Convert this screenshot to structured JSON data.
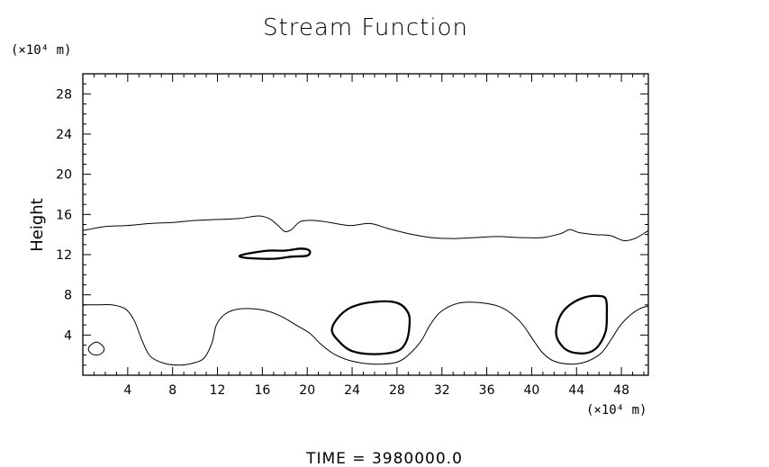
{
  "chart_data": {
    "type": "line",
    "title": "Stream Function",
    "xlabel": "",
    "ylabel": "Height",
    "x_unit": "(×10⁴ m)",
    "y_unit": "(×10⁴ m)",
    "xlim": [
      0,
      50.4
    ],
    "ylim": [
      0,
      30
    ],
    "x_ticks": [
      4,
      8,
      12,
      16,
      20,
      24,
      28,
      32,
      36,
      40,
      44,
      48
    ],
    "y_ticks": [
      4,
      8,
      12,
      16,
      20,
      24,
      28
    ],
    "footer": "TIME  =  3980000.0",
    "series": [
      {
        "id": "upper-contour",
        "kind": "thin",
        "closed": false,
        "points": [
          [
            0,
            14.4
          ],
          [
            2,
            14.8
          ],
          [
            4,
            14.9
          ],
          [
            6,
            15.1
          ],
          [
            8,
            15.2
          ],
          [
            10,
            15.4
          ],
          [
            12,
            15.5
          ],
          [
            14,
            15.6
          ],
          [
            15.6,
            15.85
          ],
          [
            16.6,
            15.6
          ],
          [
            17.4,
            14.9
          ],
          [
            18,
            14.3
          ],
          [
            18.6,
            14.5
          ],
          [
            19.4,
            15.3
          ],
          [
            20.6,
            15.4
          ],
          [
            22,
            15.2
          ],
          [
            23.8,
            14.9
          ],
          [
            25.6,
            15.1
          ],
          [
            27.2,
            14.6
          ],
          [
            29,
            14.1
          ],
          [
            31,
            13.7
          ],
          [
            33,
            13.6
          ],
          [
            35,
            13.7
          ],
          [
            37,
            13.8
          ],
          [
            39,
            13.7
          ],
          [
            41,
            13.7
          ],
          [
            42.6,
            14.1
          ],
          [
            43.4,
            14.5
          ],
          [
            44.2,
            14.2
          ],
          [
            45.6,
            14.0
          ],
          [
            47,
            13.9
          ],
          [
            48.2,
            13.4
          ],
          [
            49.2,
            13.6
          ],
          [
            50.4,
            14.4
          ]
        ]
      },
      {
        "id": "lower-contour",
        "kind": "thin",
        "closed": false,
        "points": [
          [
            0,
            7.0
          ],
          [
            1.4,
            7.0
          ],
          [
            2.6,
            7.0
          ],
          [
            3.8,
            6.6
          ],
          [
            4.6,
            5.4
          ],
          [
            5.3,
            3.4
          ],
          [
            6.0,
            1.9
          ],
          [
            7.2,
            1.2
          ],
          [
            8.6,
            1.0
          ],
          [
            9.8,
            1.2
          ],
          [
            10.8,
            1.7
          ],
          [
            11.5,
            3.2
          ],
          [
            11.9,
            5.0
          ],
          [
            12.7,
            6.1
          ],
          [
            14.0,
            6.6
          ],
          [
            16,
            6.5
          ],
          [
            17.6,
            5.9
          ],
          [
            19,
            5.0
          ],
          [
            20.2,
            4.2
          ],
          [
            21.2,
            3.1
          ],
          [
            22.4,
            2.1
          ],
          [
            24,
            1.4
          ],
          [
            26,
            1.1
          ],
          [
            28,
            1.3
          ],
          [
            29.2,
            2.2
          ],
          [
            30.2,
            3.5
          ],
          [
            31.0,
            5.1
          ],
          [
            32,
            6.4
          ],
          [
            33.6,
            7.2
          ],
          [
            35.6,
            7.2
          ],
          [
            37.4,
            6.7
          ],
          [
            39,
            5.3
          ],
          [
            40.2,
            3.4
          ],
          [
            41.0,
            2.2
          ],
          [
            42,
            1.4
          ],
          [
            43.6,
            1.1
          ],
          [
            45,
            1.4
          ],
          [
            46.2,
            2.2
          ],
          [
            47.0,
            3.4
          ],
          [
            47.8,
            4.8
          ],
          [
            48.6,
            5.8
          ],
          [
            49.6,
            6.6
          ],
          [
            50.4,
            6.9
          ]
        ]
      },
      {
        "id": "small-circle-contour",
        "kind": "thin",
        "closed": true,
        "points": [
          [
            1.2,
            3.3
          ],
          [
            1.7,
            3.0
          ],
          [
            1.9,
            2.6
          ],
          [
            1.7,
            2.2
          ],
          [
            1.2,
            2.0
          ],
          [
            0.7,
            2.2
          ],
          [
            0.5,
            2.6
          ],
          [
            0.7,
            3.0
          ]
        ]
      },
      {
        "id": "closed-contour-12",
        "kind": "bold",
        "closed": true,
        "points": [
          [
            14.0,
            11.9
          ],
          [
            15.2,
            12.2
          ],
          [
            16.6,
            12.4
          ],
          [
            18,
            12.4
          ],
          [
            19.4,
            12.6
          ],
          [
            20.2,
            12.4
          ],
          [
            20.0,
            11.9
          ],
          [
            18.6,
            11.8
          ],
          [
            17.2,
            11.6
          ],
          [
            15.8,
            11.6
          ],
          [
            14.4,
            11.7
          ]
        ]
      },
      {
        "id": "closed-contour-26",
        "kind": "bold",
        "closed": true,
        "points": [
          [
            22.2,
            4.5
          ],
          [
            22.8,
            5.8
          ],
          [
            24,
            6.8
          ],
          [
            26,
            7.3
          ],
          [
            28,
            7.2
          ],
          [
            29.0,
            6.2
          ],
          [
            29.1,
            4.8
          ],
          [
            28.8,
            3.3
          ],
          [
            28,
            2.4
          ],
          [
            26,
            2.1
          ],
          [
            24,
            2.4
          ],
          [
            22.8,
            3.4
          ]
        ]
      },
      {
        "id": "closed-contour-45",
        "kind": "bold",
        "closed": true,
        "points": [
          [
            42.2,
            4.6
          ],
          [
            42.6,
            6.0
          ],
          [
            43.4,
            7.0
          ],
          [
            44.6,
            7.7
          ],
          [
            45.8,
            7.9
          ],
          [
            46.6,
            7.6
          ],
          [
            46.7,
            6.0
          ],
          [
            46.6,
            4.4
          ],
          [
            46.0,
            3.0
          ],
          [
            45.2,
            2.3
          ],
          [
            44.0,
            2.2
          ],
          [
            43.0,
            2.6
          ],
          [
            42.3,
            3.6
          ]
        ]
      }
    ]
  }
}
